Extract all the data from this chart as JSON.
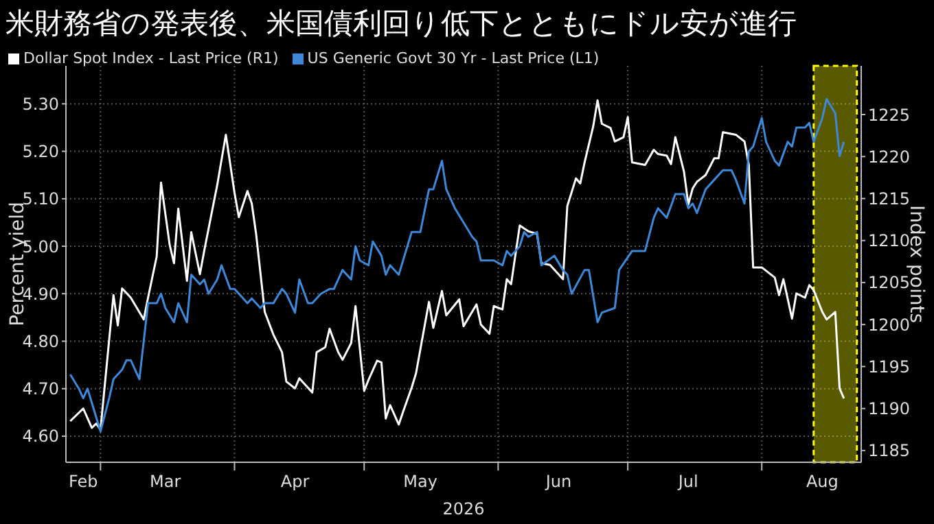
{
  "chart_data": {
    "type": "line",
    "title": "米財務省の発表後、米国債利回り低下とともにドル安が進行",
    "xlabel": "2026",
    "ylabel": "Percent yield",
    "y2label": "Index points",
    "xlim": [
      "2026-02-21",
      "2026-08-24"
    ],
    "xticks": [
      {
        "value": "2026-02-25",
        "label": "Feb"
      },
      {
        "value": "2026-03-01",
        "label": null
      },
      {
        "value": "2026-03-16",
        "label": "Mar"
      },
      {
        "value": "2026-04-01",
        "label": null
      },
      {
        "value": "2026-04-15",
        "label": "Apr"
      },
      {
        "value": "2026-05-01",
        "label": null
      },
      {
        "value": "2026-05-14",
        "label": "May"
      },
      {
        "value": "2026-06-01",
        "label": null
      },
      {
        "value": "2026-06-15",
        "label": "Jun"
      },
      {
        "value": "2026-07-01",
        "label": null
      },
      {
        "value": "2026-07-15",
        "label": "Jul"
      },
      {
        "value": "2026-08-01",
        "label": null
      },
      {
        "value": "2026-08-15",
        "label": "Aug"
      }
    ],
    "ylim": [
      4.545,
      5.38
    ],
    "yticks": [
      {
        "value": 4.6,
        "label": "4.60"
      },
      {
        "value": 4.7,
        "label": "4.70"
      },
      {
        "value": 4.8,
        "label": "4.80"
      },
      {
        "value": 4.9,
        "label": "4.90"
      },
      {
        "value": 5.0,
        "label": "5.00"
      },
      {
        "value": 5.1,
        "label": "5.10"
      },
      {
        "value": 5.2,
        "label": "5.20"
      },
      {
        "value": 5.3,
        "label": "5.30"
      }
    ],
    "y2lim": [
      1183.6,
      1230.8
    ],
    "y2ticks": [
      1185,
      1190,
      1195,
      1200,
      1205,
      1210,
      1215,
      1220,
      1225
    ],
    "grid": true,
    "legend": "top left",
    "marker": "none",
    "line_style": "solid",
    "bands": [
      {
        "axis": "x",
        "from": "2026-08-13",
        "to": "2026-08-23",
        "color": "#ffff00"
      }
    ],
    "series": [
      {
        "name": "Dollar Spot Index - Last Price (R1)",
        "color": "#ffffff",
        "axis": "y2",
        "x": [
          "2026-02-22",
          "2026-02-25",
          "2026-02-27",
          "2026-02-28",
          "2026-03-01",
          "2026-03-04",
          "2026-03-05",
          "2026-03-06",
          "2026-03-08",
          "2026-03-11",
          "2026-03-12",
          "2026-03-14",
          "2026-03-15",
          "2026-03-17",
          "2026-03-18",
          "2026-03-19",
          "2026-03-21",
          "2026-03-22",
          "2026-03-24",
          "2026-03-25",
          "2026-03-26",
          "2026-03-28",
          "2026-03-30",
          "2026-04-01",
          "2026-04-02",
          "2026-04-04",
          "2026-04-05",
          "2026-04-06",
          "2026-04-08",
          "2026-04-10",
          "2026-04-12",
          "2026-04-13",
          "2026-04-15",
          "2026-04-16",
          "2026-04-19",
          "2026-04-20",
          "2026-04-22",
          "2026-04-23",
          "2026-04-25",
          "2026-04-26",
          "2026-04-28",
          "2026-04-29",
          "2026-05-01",
          "2026-05-02",
          "2026-05-04",
          "2026-05-05",
          "2026-05-06",
          "2026-05-07",
          "2026-05-09",
          "2026-05-10",
          "2026-05-12",
          "2026-05-13",
          "2026-05-16",
          "2026-05-17",
          "2026-05-19",
          "2026-05-20",
          "2026-05-23",
          "2026-05-24",
          "2026-05-27",
          "2026-05-28",
          "2026-05-30",
          "2026-05-31",
          "2026-06-02",
          "2026-06-03",
          "2026-06-04",
          "2026-06-06",
          "2026-06-08",
          "2026-06-10",
          "2026-06-11",
          "2026-06-13",
          "2026-06-16",
          "2026-06-17",
          "2026-06-19",
          "2026-06-20",
          "2026-06-21",
          "2026-06-23",
          "2026-06-24",
          "2026-06-25",
          "2026-06-27",
          "2026-06-28",
          "2026-06-30",
          "2026-07-01",
          "2026-07-02",
          "2026-07-05",
          "2026-07-07",
          "2026-07-08",
          "2026-07-10",
          "2026-07-11",
          "2026-07-12",
          "2026-07-14",
          "2026-07-15",
          "2026-07-16",
          "2026-07-17",
          "2026-07-19",
          "2026-07-21",
          "2026-07-22",
          "2026-07-23",
          "2026-07-26",
          "2026-07-28",
          "2026-07-29",
          "2026-07-30",
          "2026-08-01",
          "2026-08-04",
          "2026-08-05",
          "2026-08-06",
          "2026-08-08",
          "2026-08-09",
          "2026-08-11",
          "2026-08-12",
          "2026-08-13",
          "2026-08-15",
          "2026-08-16",
          "2026-08-18",
          "2026-08-19",
          "2026-08-20"
        ],
        "values": [
          1188.5,
          1190,
          1187.7,
          1188.2,
          1187.5,
          1203.5,
          1199.9,
          1204.3,
          1203.2,
          1200.6,
          1203.2,
          1208.1,
          1216.9,
          1209.5,
          1207.3,
          1213.8,
          1205.2,
          1211,
          1206,
          1208.8,
          1211.4,
          1216.6,
          1222.6,
          1215.7,
          1212.8,
          1215.9,
          1214.4,
          1210.8,
          1201.5,
          1198.8,
          1196.7,
          1193.2,
          1192.4,
          1193.6,
          1191.9,
          1196.7,
          1197.3,
          1199.5,
          1196.7,
          1195.8,
          1197.8,
          1202.2,
          1192.1,
          1193.4,
          1195.7,
          1195.5,
          1188.8,
          1190.4,
          1188.1,
          1189.6,
          1192.5,
          1194.2,
          1202.7,
          1199.6,
          1204,
          1201.1,
          1203,
          1199.8,
          1202.4,
          1200,
          1198.9,
          1202.2,
          1201.8,
          1205.4,
          1204.8,
          1211.8,
          1211.1,
          1210.8,
          1207.3,
          1207.1,
          1205.4,
          1214.1,
          1217.4,
          1216.8,
          1219.3,
          1223.6,
          1226.7,
          1223.9,
          1223.4,
          1221.8,
          1222.3,
          1224.7,
          1219.3,
          1219,
          1220.8,
          1220.3,
          1220.1,
          1219.1,
          1222.3,
          1218.2,
          1214.3,
          1216.2,
          1217,
          1217.8,
          1219.8,
          1219.8,
          1222.9,
          1222.6,
          1221.8,
          1219,
          1206.8,
          1206.8,
          1205.6,
          1203.5,
          1205.4,
          1200.7,
          1203.7,
          1203.2,
          1204.7,
          1204.1,
          1201.5,
          1200.6,
          1201.5,
          1192.4,
          1191.2
        ]
      },
      {
        "name": "US Generic Govt 30 Yr - Last Price (L1)",
        "color": "#3f88d8",
        "x": [
          "2026-02-22",
          "2026-02-24",
          "2026-02-25",
          "2026-02-26",
          "2026-02-27",
          "2026-03-01",
          "2026-03-03",
          "2026-03-04",
          "2026-03-06",
          "2026-03-07",
          "2026-03-08",
          "2026-03-10",
          "2026-03-12",
          "2026-03-14",
          "2026-03-15",
          "2026-03-16",
          "2026-03-18",
          "2026-03-19",
          "2026-03-21",
          "2026-03-22",
          "2026-03-24",
          "2026-03-25",
          "2026-03-26",
          "2026-03-28",
          "2026-03-29",
          "2026-03-31",
          "2026-04-01",
          "2026-04-04",
          "2026-04-05",
          "2026-04-07",
          "2026-04-08",
          "2026-04-10",
          "2026-04-12",
          "2026-04-13",
          "2026-04-15",
          "2026-04-16",
          "2026-04-18",
          "2026-04-19",
          "2026-04-21",
          "2026-04-23",
          "2026-04-24",
          "2026-04-26",
          "2026-04-28",
          "2026-04-29",
          "2026-04-30",
          "2026-05-02",
          "2026-05-03",
          "2026-05-05",
          "2026-05-06",
          "2026-05-07",
          "2026-05-09",
          "2026-05-12",
          "2026-05-13",
          "2026-05-14",
          "2026-05-16",
          "2026-05-17",
          "2026-05-19",
          "2026-05-20",
          "2026-05-22",
          "2026-05-24",
          "2026-05-26",
          "2026-05-27",
          "2026-05-28",
          "2026-05-31",
          "2026-06-02",
          "2026-06-03",
          "2026-06-04",
          "2026-06-06",
          "2026-06-07",
          "2026-06-08",
          "2026-06-10",
          "2026-06-11",
          "2026-06-14",
          "2026-06-16",
          "2026-06-17",
          "2026-06-18",
          "2026-06-21",
          "2026-06-22",
          "2026-06-24",
          "2026-06-25",
          "2026-06-28",
          "2026-06-29",
          "2026-07-02",
          "2026-07-05",
          "2026-07-07",
          "2026-07-08",
          "2026-07-10",
          "2026-07-12",
          "2026-07-14",
          "2026-07-15",
          "2026-07-16",
          "2026-07-17",
          "2026-07-19",
          "2026-07-21",
          "2026-07-23",
          "2026-07-25",
          "2026-07-26",
          "2026-07-28",
          "2026-07-29",
          "2026-07-30",
          "2026-08-01",
          "2026-08-02",
          "2026-08-04",
          "2026-08-05",
          "2026-08-07",
          "2026-08-08",
          "2026-08-09",
          "2026-08-11",
          "2026-08-12",
          "2026-08-13",
          "2026-08-15",
          "2026-08-16",
          "2026-08-18",
          "2026-08-19",
          "2026-08-20"
        ],
        "values": [
          4.73,
          4.7,
          4.68,
          4.7,
          4.67,
          4.61,
          4.68,
          4.72,
          4.74,
          4.76,
          4.76,
          4.72,
          4.88,
          4.88,
          4.9,
          4.87,
          4.84,
          4.88,
          4.84,
          4.94,
          4.92,
          4.93,
          4.9,
          4.93,
          4.96,
          4.91,
          4.91,
          4.88,
          4.89,
          4.87,
          4.88,
          4.88,
          4.91,
          4.9,
          4.86,
          4.93,
          4.88,
          4.88,
          4.9,
          4.91,
          4.91,
          4.95,
          4.93,
          5.0,
          4.97,
          4.96,
          5.01,
          4.98,
          4.94,
          4.96,
          4.94,
          5.03,
          5.03,
          5.03,
          5.12,
          5.12,
          5.18,
          5.12,
          5.08,
          5.05,
          5.02,
          5.01,
          4.97,
          4.97,
          4.96,
          4.99,
          4.98,
          5.0,
          5.03,
          5.02,
          5.03,
          4.96,
          4.98,
          4.95,
          4.94,
          4.9,
          4.95,
          4.95,
          4.84,
          4.86,
          4.87,
          4.95,
          4.99,
          4.99,
          5.06,
          5.08,
          5.06,
          5.11,
          5.11,
          5.08,
          5.09,
          5.07,
          5.12,
          5.14,
          5.16,
          5.16,
          5.14,
          5.09,
          5.2,
          5.21,
          5.27,
          5.22,
          5.18,
          5.17,
          5.22,
          5.21,
          5.25,
          5.25,
          5.26,
          5.22,
          5.27,
          5.31,
          5.28,
          5.19,
          5.22
        ]
      }
    ]
  }
}
